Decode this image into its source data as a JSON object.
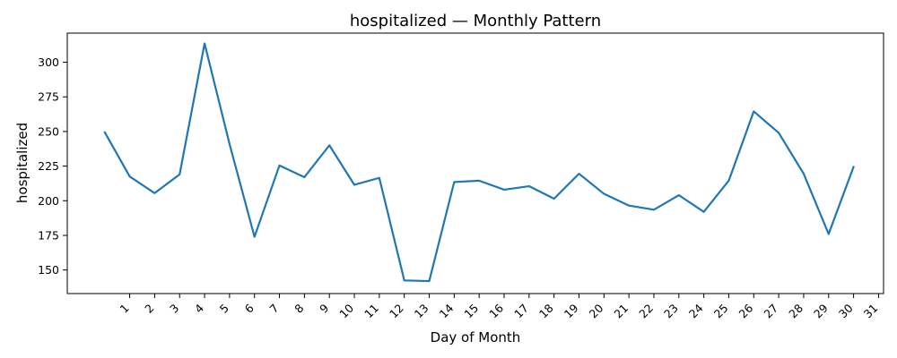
{
  "chart_data": {
    "type": "line",
    "title": "hospitalized — Monthly Pattern",
    "xlabel": "Day of Month",
    "ylabel": "hospitalized",
    "categories": [
      "1",
      "2",
      "3",
      "4",
      "5",
      "6",
      "7",
      "8",
      "9",
      "10",
      "11",
      "12",
      "13",
      "14",
      "15",
      "16",
      "17",
      "18",
      "19",
      "20",
      "21",
      "22",
      "23",
      "24",
      "25",
      "26",
      "27",
      "28",
      "29",
      "30",
      "31"
    ],
    "x": [
      0,
      1,
      2,
      3,
      4,
      5,
      6,
      7,
      8,
      9,
      10,
      11,
      12,
      13,
      14,
      15,
      16,
      17,
      18,
      19,
      20,
      21,
      22,
      23,
      24,
      25,
      26,
      27,
      28,
      29,
      30
    ],
    "values": [
      249.5,
      217.5,
      205.5,
      219,
      313.5,
      241,
      174,
      225.5,
      217,
      240,
      211.5,
      216.5,
      142.5,
      142,
      213.5,
      214.5,
      208,
      210.5,
      201.5,
      219.5,
      205,
      196.5,
      193.5,
      204,
      192,
      214.5,
      264.5,
      249,
      219.5,
      176,
      224.5
    ],
    "yticks": [
      150,
      175,
      200,
      225,
      250,
      275,
      300
    ],
    "ylim": [
      133,
      321
    ],
    "xlim": [
      -1.5,
      31.2
    ],
    "grid": false,
    "line_color": "#1f77b4"
  }
}
